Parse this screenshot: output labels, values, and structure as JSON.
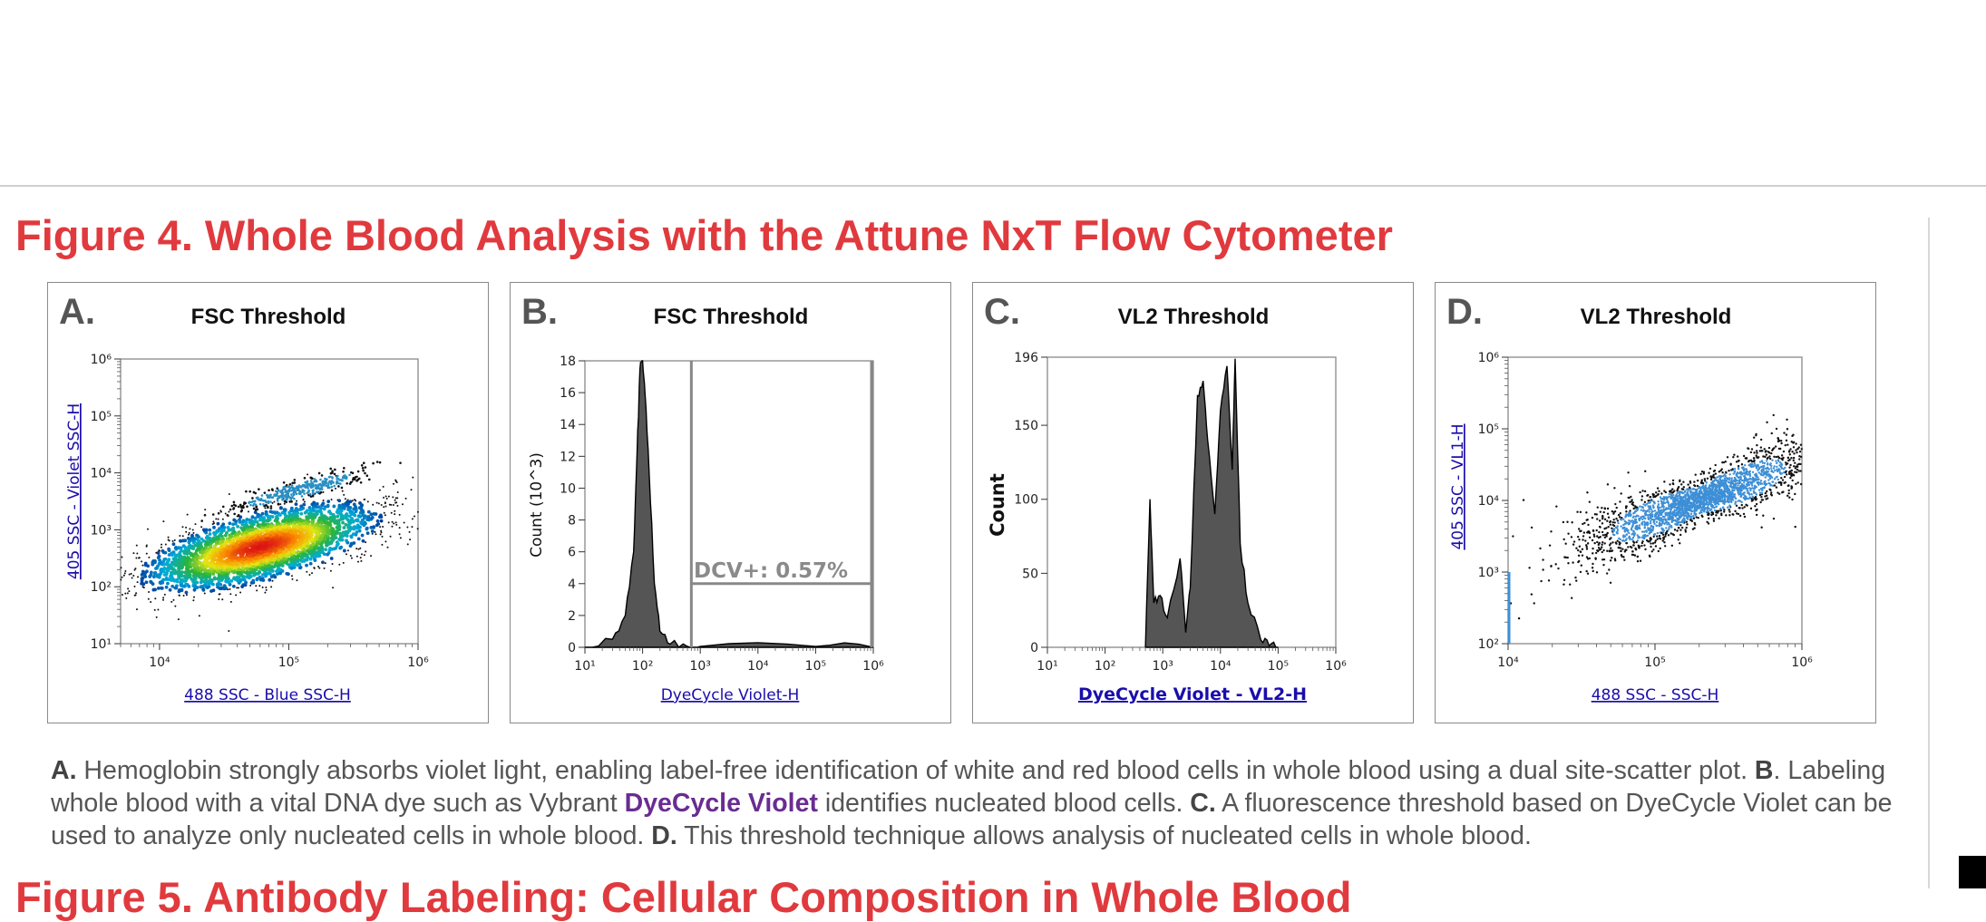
{
  "figure_title": "Figure 4. Whole Blood Analysis with the Attune NxT Flow Cytometer",
  "next_figure_title_partial": "Figure 5. Antibody Labeling: Cellular Composition in Whole Blood",
  "panels": [
    {
      "letter": "A.",
      "title": "FSC Threshold",
      "xlabel": "488 SSC - Blue SSC-H",
      "ylabel": "405 SSC - Violet SSC-H"
    },
    {
      "letter": "B.",
      "title": "FSC Threshold",
      "xlabel": "DyeCycle Violet-H",
      "ylabel": "Count (10^3)",
      "gate_label": "DCV+: 0.57%"
    },
    {
      "letter": "C.",
      "title": "VL2 Threshold",
      "xlabel": "DyeCycle Violet - VL2-H",
      "ylabel": "Count"
    },
    {
      "letter": "D.",
      "title": "VL2 Threshold",
      "xlabel": "488 SSC - SSC-H",
      "ylabel": "405 SSC - VL1-H"
    }
  ],
  "caption": {
    "a_label": "A.",
    "a_text": " Hemoglobin strongly absorbs violet light, enabling label-free identification of white and red blood cells in whole blood using a dual site-scatter plot. ",
    "b_label": "B",
    "b_text_1": ". Labeling whole blood with a vital DNA dye such as Vybrant ",
    "dye_name": "DyeCycle Violet",
    "b_text_2": " identifies nucleated blood cells. ",
    "c_label": "C.",
    "c_text": " A fluorescence threshold based on DyeCycle Violet can be used to analyze only nucleated cells in whole blood. ",
    "d_label": "D.",
    "d_text": " This threshold technique allows analysis of nucleated cells in whole blood."
  },
  "colors": {
    "title_red": "#e03a3e",
    "axis_label_blue": "#1a0dab",
    "dye_purple": "#6a2c91",
    "histogram_fill": "#555555"
  },
  "chart_data": [
    {
      "type": "scatter",
      "title": "FSC Threshold",
      "xlabel": "488 SSC - Blue SSC-H",
      "ylabel": "405 SSC - Violet SSC-H",
      "xscale": "log",
      "yscale": "log",
      "xlim": [
        5000,
        1000000
      ],
      "ylim": [
        10,
        1000000
      ],
      "xticks": [
        10000,
        100000,
        1000000
      ],
      "yticks": [
        10,
        100,
        1000,
        10000,
        100000,
        1000000
      ],
      "xticklabels": [
        "10⁴",
        "10⁵",
        "10⁶"
      ],
      "yticklabels": [
        "10¹",
        "10²",
        "10³",
        "10⁴",
        "10⁵",
        "10⁶"
      ],
      "populations": [
        {
          "name": "red blood cells",
          "center": [
            60000,
            500
          ],
          "color": "density heatmap"
        },
        {
          "name": "white blood cells",
          "center": [
            120000,
            5000
          ],
          "color": "#2a8fc2"
        }
      ]
    },
    {
      "type": "area",
      "title": "FSC Threshold",
      "xlabel": "DyeCycle Violet-H",
      "ylabel": "Count (10^3)",
      "xscale": "log",
      "xlim": [
        10,
        1000000
      ],
      "ylim": [
        0,
        18
      ],
      "xticklabels": [
        "10¹",
        "10²",
        "10³",
        "10⁴",
        "10⁵",
        "10⁶"
      ],
      "yticks": [
        0,
        2,
        4,
        6,
        8,
        10,
        12,
        14,
        16,
        18
      ],
      "x": [
        10,
        30,
        50,
        70,
        80,
        90,
        100,
        110,
        130,
        160,
        200,
        300,
        600,
        1000,
        100000,
        1000000
      ],
      "y": [
        0,
        0.5,
        2,
        6,
        12,
        17.5,
        18,
        16,
        11,
        4,
        1,
        0.2,
        0.05,
        0.05,
        0.05,
        0
      ],
      "gate": {
        "label": "DCV+: 0.57%",
        "xmin": 700,
        "xmax": 1000000,
        "level": 4
      }
    },
    {
      "type": "area",
      "title": "VL2 Threshold",
      "xlabel": "DyeCycle Violet - VL2-H",
      "ylabel": "Count",
      "xscale": "log",
      "xlim": [
        10,
        1000000
      ],
      "ylim": [
        0,
        196
      ],
      "xticklabels": [
        "10¹",
        "10²",
        "10³",
        "10⁴",
        "10⁵",
        "10⁶"
      ],
      "yticks": [
        0,
        50,
        100,
        150,
        196
      ],
      "x": [
        500,
        600,
        700,
        900,
        1200,
        2000,
        2500,
        3000,
        4000,
        5000,
        6000,
        8000,
        10000,
        13000,
        16000,
        18000,
        22000,
        30000,
        50000,
        70000,
        100000
      ],
      "y": [
        0,
        100,
        30,
        35,
        20,
        60,
        10,
        40,
        170,
        180,
        140,
        90,
        160,
        190,
        120,
        195,
        70,
        30,
        5,
        1,
        0
      ]
    },
    {
      "type": "scatter",
      "title": "VL2 Threshold",
      "xlabel": "488 SSC - SSC-H",
      "ylabel": "405 SSC - VL1-H",
      "xscale": "log",
      "yscale": "log",
      "xlim": [
        10000,
        1000000
      ],
      "ylim": [
        100,
        1000000
      ],
      "xticks": [
        10000,
        100000,
        1000000
      ],
      "yticks": [
        100,
        1000,
        10000,
        100000,
        1000000
      ],
      "xticklabels": [
        "10⁴",
        "10⁵",
        "10⁶"
      ],
      "yticklabels": [
        "10²",
        "10³",
        "10⁴",
        "10⁵",
        "10⁶"
      ],
      "populations": [
        {
          "name": "nucleated cells",
          "center": [
            200000,
            10000
          ],
          "color": "#3d8fd6"
        }
      ]
    }
  ]
}
